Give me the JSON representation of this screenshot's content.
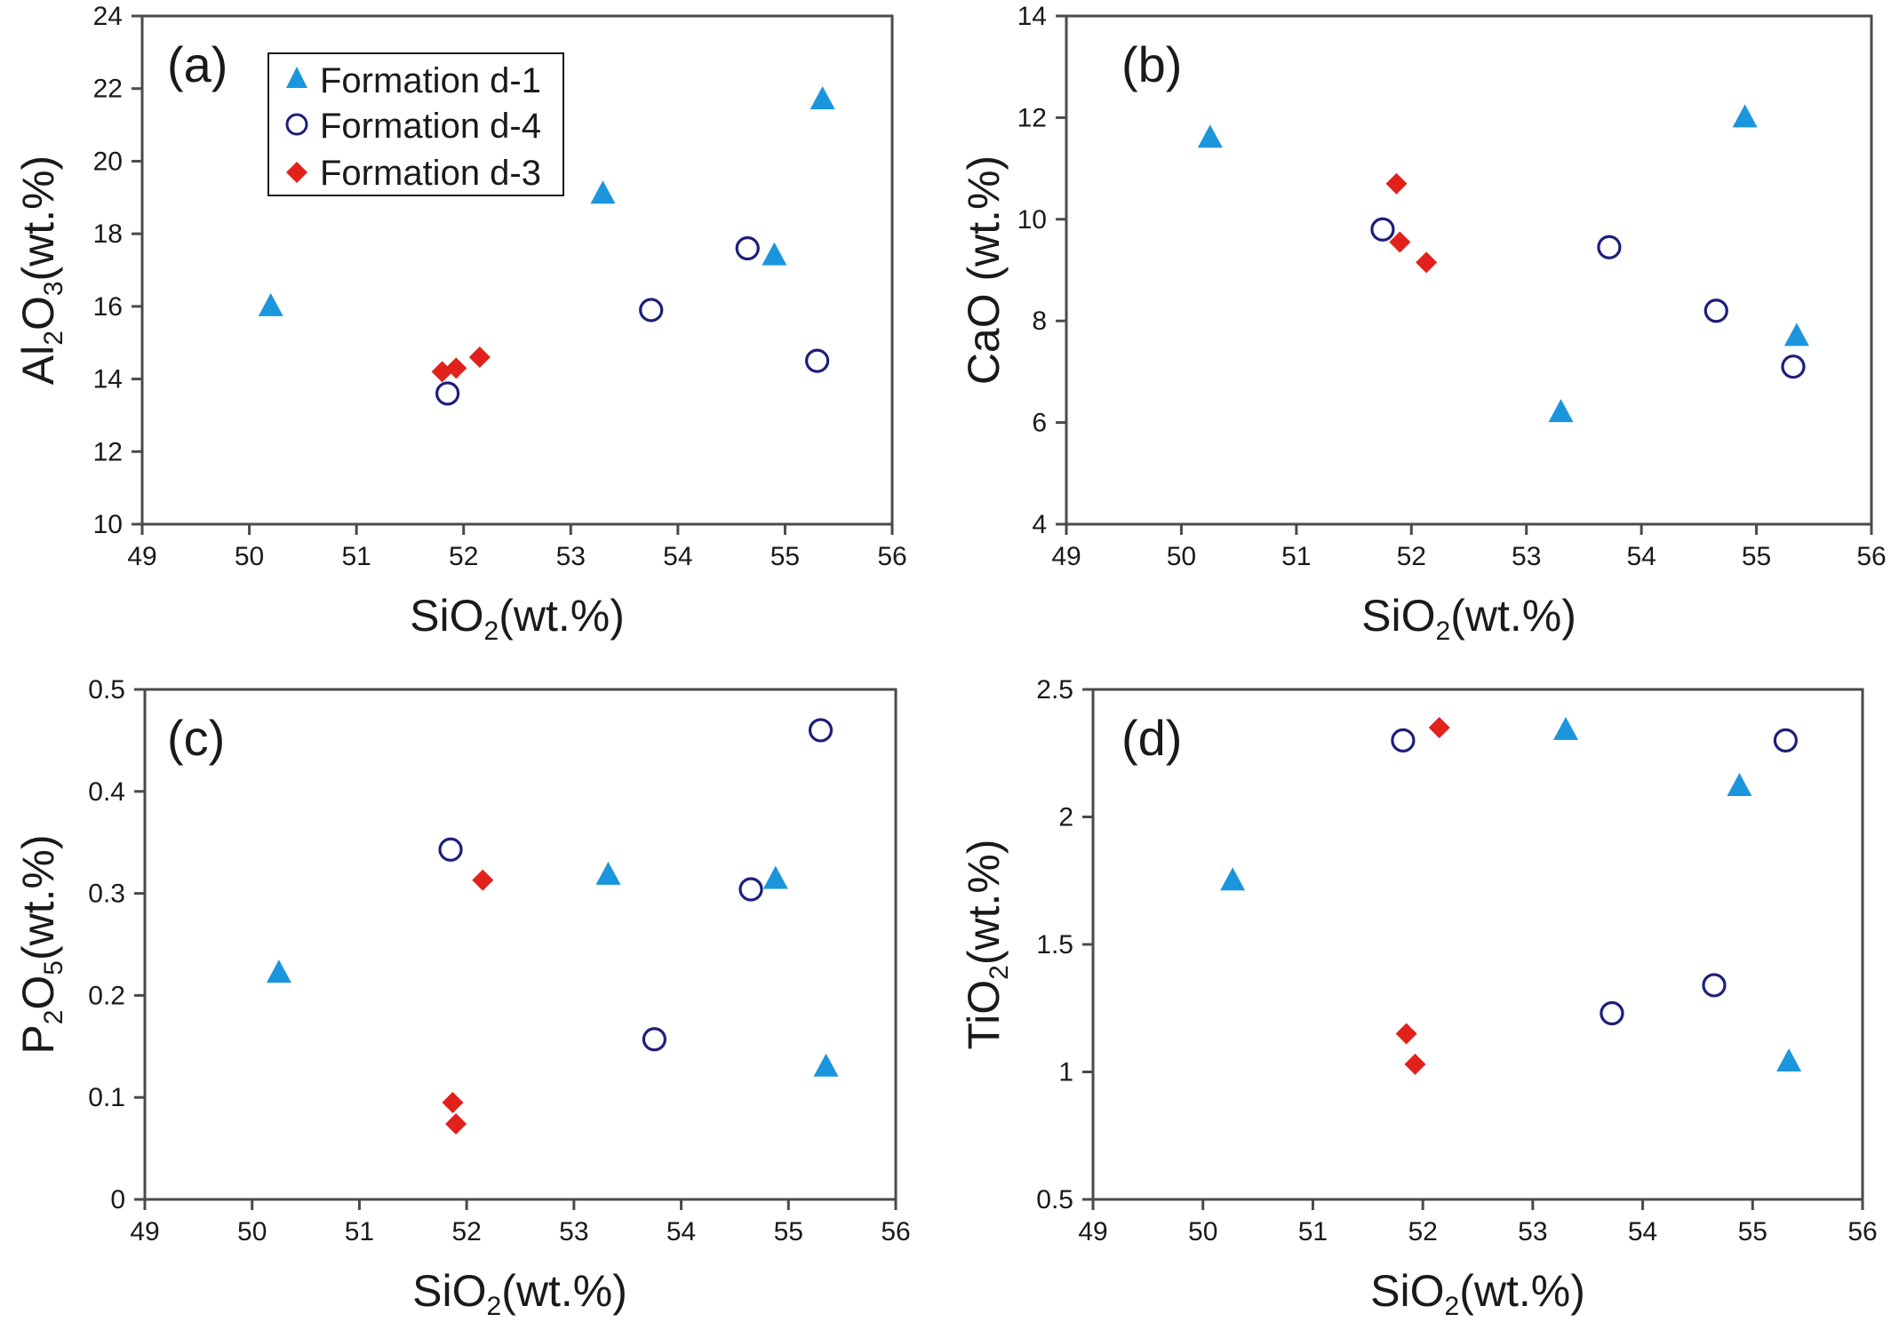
{
  "colors": {
    "formation_d1": "#1b96dc",
    "formation_d4": "#1c1f7a",
    "formation_d3": "#e2211c",
    "axis": "#4a4a4a"
  },
  "legend": {
    "items": [
      {
        "series": "formation_d1",
        "label": "Formation d-1",
        "marker": "triangle"
      },
      {
        "series": "formation_d4",
        "label": "Formation d-4",
        "marker": "open-circle"
      },
      {
        "series": "formation_d3",
        "label": "Formation d-3",
        "marker": "diamond"
      }
    ]
  },
  "chart_data": [
    {
      "panel": "(a)",
      "type": "scatter",
      "xlabel": {
        "main": "SiO",
        "sub": "2",
        "tail": "(wt.%)"
      },
      "ylabel": {
        "main": "Al",
        "sub1": "2",
        "mid": "O",
        "sub2": "3",
        "tail": "(wt.%)"
      },
      "xlim": [
        49,
        56
      ],
      "ylim": [
        10,
        24
      ],
      "xticks": [
        "49",
        "50",
        "51",
        "52",
        "53",
        "54",
        "55",
        "56"
      ],
      "yticks": [
        "10",
        "12",
        "14",
        "16",
        "18",
        "20",
        "22",
        "24"
      ],
      "legend_position": "top-left",
      "series": [
        {
          "name": "Formation d-1",
          "key": "formation_d1",
          "points": [
            [
              50.2,
              16.0
            ],
            [
              53.3,
              19.1
            ],
            [
              54.9,
              17.4
            ],
            [
              55.35,
              21.7
            ]
          ]
        },
        {
          "name": "Formation d-4",
          "key": "formation_d4",
          "points": [
            [
              51.85,
              13.6
            ],
            [
              53.75,
              15.9
            ],
            [
              54.65,
              17.6
            ],
            [
              55.3,
              14.5
            ]
          ]
        },
        {
          "name": "Formation d-3",
          "key": "formation_d3",
          "points": [
            [
              51.8,
              14.2
            ],
            [
              51.93,
              14.3
            ],
            [
              52.15,
              14.6
            ]
          ]
        }
      ]
    },
    {
      "panel": "(b)",
      "type": "scatter",
      "xlabel": {
        "main": "SiO",
        "sub": "2",
        "tail": "(wt.%)"
      },
      "ylabel": {
        "main": "CaO (wt.%)"
      },
      "xlim": [
        49,
        56
      ],
      "ylim": [
        4,
        14
      ],
      "xticks": [
        "49",
        "50",
        "51",
        "52",
        "53",
        "54",
        "55",
        "56"
      ],
      "yticks": [
        "4",
        "6",
        "8",
        "10",
        "12",
        "14"
      ],
      "series": [
        {
          "name": "Formation d-1",
          "key": "formation_d1",
          "points": [
            [
              50.25,
              11.6
            ],
            [
              53.3,
              6.2
            ],
            [
              54.9,
              12.0
            ],
            [
              55.35,
              7.7
            ]
          ]
        },
        {
          "name": "Formation d-4",
          "key": "formation_d4",
          "points": [
            [
              51.75,
              9.8
            ],
            [
              53.72,
              9.45
            ],
            [
              54.65,
              8.2
            ],
            [
              55.32,
              7.1
            ]
          ]
        },
        {
          "name": "Formation d-3",
          "key": "formation_d3",
          "points": [
            [
              51.87,
              10.7
            ],
            [
              51.9,
              9.55
            ],
            [
              52.13,
              9.15
            ]
          ]
        }
      ]
    },
    {
      "panel": "(c)",
      "type": "scatter",
      "xlabel": {
        "main": "SiO",
        "sub": "2",
        "tail": "(wt.%)"
      },
      "ylabel": {
        "main": "P",
        "sub1": "2",
        "mid": "O",
        "sub2": "5",
        "tail": "(wt.%)"
      },
      "xlim": [
        49,
        56
      ],
      "ylim": [
        0,
        0.5
      ],
      "xticks": [
        "49",
        "50",
        "51",
        "52",
        "53",
        "54",
        "55",
        "56"
      ],
      "yticks": [
        "0",
        "0.1",
        "0.2",
        "0.3",
        "0.4",
        "0.5"
      ],
      "series": [
        {
          "name": "Formation d-1",
          "key": "formation_d1",
          "points": [
            [
              50.25,
              0.222
            ],
            [
              53.32,
              0.318
            ],
            [
              54.88,
              0.314
            ],
            [
              55.35,
              0.13
            ]
          ]
        },
        {
          "name": "Formation d-4",
          "key": "formation_d4",
          "points": [
            [
              51.85,
              0.343
            ],
            [
              53.75,
              0.157
            ],
            [
              54.65,
              0.304
            ],
            [
              55.3,
              0.46
            ]
          ]
        },
        {
          "name": "Formation d-3",
          "key": "formation_d3",
          "points": [
            [
              51.87,
              0.095
            ],
            [
              51.9,
              0.074
            ],
            [
              52.15,
              0.313
            ]
          ]
        }
      ]
    },
    {
      "panel": "(d)",
      "type": "scatter",
      "xlabel": {
        "main": "SiO",
        "sub": "2",
        "tail": "(wt.%)"
      },
      "ylabel": {
        "main": "TiO",
        "sub1": "2",
        "tail": "(wt.%)"
      },
      "xlim": [
        49,
        56
      ],
      "ylim": [
        0.5,
        2.5
      ],
      "xticks": [
        "49",
        "50",
        "51",
        "52",
        "53",
        "54",
        "55",
        "56"
      ],
      "yticks": [
        "0.5",
        "1",
        "1.5",
        "2",
        "2.5"
      ],
      "series": [
        {
          "name": "Formation d-1",
          "key": "formation_d1",
          "points": [
            [
              50.27,
              1.75
            ],
            [
              53.3,
              2.34
            ],
            [
              54.88,
              2.12
            ],
            [
              55.33,
              1.04
            ]
          ]
        },
        {
          "name": "Formation d-4",
          "key": "formation_d4",
          "points": [
            [
              51.82,
              2.3
            ],
            [
              53.72,
              1.23
            ],
            [
              54.65,
              1.34
            ],
            [
              55.3,
              2.3
            ]
          ]
        },
        {
          "name": "Formation d-3",
          "key": "formation_d3",
          "points": [
            [
              51.85,
              1.15
            ],
            [
              51.93,
              1.03
            ],
            [
              52.15,
              2.35
            ]
          ]
        }
      ]
    }
  ]
}
